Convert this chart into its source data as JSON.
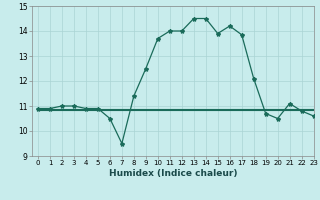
{
  "xlabel": "Humidex (Indice chaleur)",
  "x": [
    0,
    1,
    2,
    3,
    4,
    5,
    6,
    7,
    8,
    9,
    10,
    11,
    12,
    13,
    14,
    15,
    16,
    17,
    18,
    19,
    20,
    21,
    22,
    23
  ],
  "y_main": [
    10.9,
    10.9,
    11.0,
    11.0,
    10.9,
    10.9,
    10.5,
    9.5,
    11.4,
    12.5,
    13.7,
    14.0,
    14.0,
    14.5,
    14.5,
    13.9,
    14.2,
    13.85,
    12.1,
    10.7,
    10.5,
    11.1,
    10.8,
    10.6
  ],
  "y_flat1": [
    10.85,
    10.85,
    10.85,
    10.85,
    10.85,
    10.85,
    10.85,
    10.85,
    10.85,
    10.85,
    10.85,
    10.85,
    10.85,
    10.85,
    10.85,
    10.85,
    10.85,
    10.85,
    10.85,
    10.85,
    10.85,
    10.85,
    10.85,
    10.85
  ],
  "y_flat2": [
    10.9,
    10.9,
    10.9,
    10.9,
    10.9,
    10.9,
    10.9,
    10.9,
    10.9,
    10.9,
    10.9,
    10.9,
    10.9,
    10.9,
    10.9,
    10.9,
    10.9,
    10.9,
    10.9,
    10.9,
    10.9,
    10.9,
    10.9,
    10.9
  ],
  "line_color": "#1a6b5a",
  "bg_color": "#c8ecec",
  "grid_color": "#aad4d4",
  "ylim": [
    9,
    15
  ],
  "xlim": [
    -0.5,
    23
  ],
  "yticks": [
    9,
    10,
    11,
    12,
    13,
    14,
    15
  ],
  "xticks": [
    0,
    1,
    2,
    3,
    4,
    5,
    6,
    7,
    8,
    9,
    10,
    11,
    12,
    13,
    14,
    15,
    16,
    17,
    18,
    19,
    20,
    21,
    22,
    23
  ],
  "tick_fontsize": 5.0,
  "xlabel_fontsize": 6.5
}
